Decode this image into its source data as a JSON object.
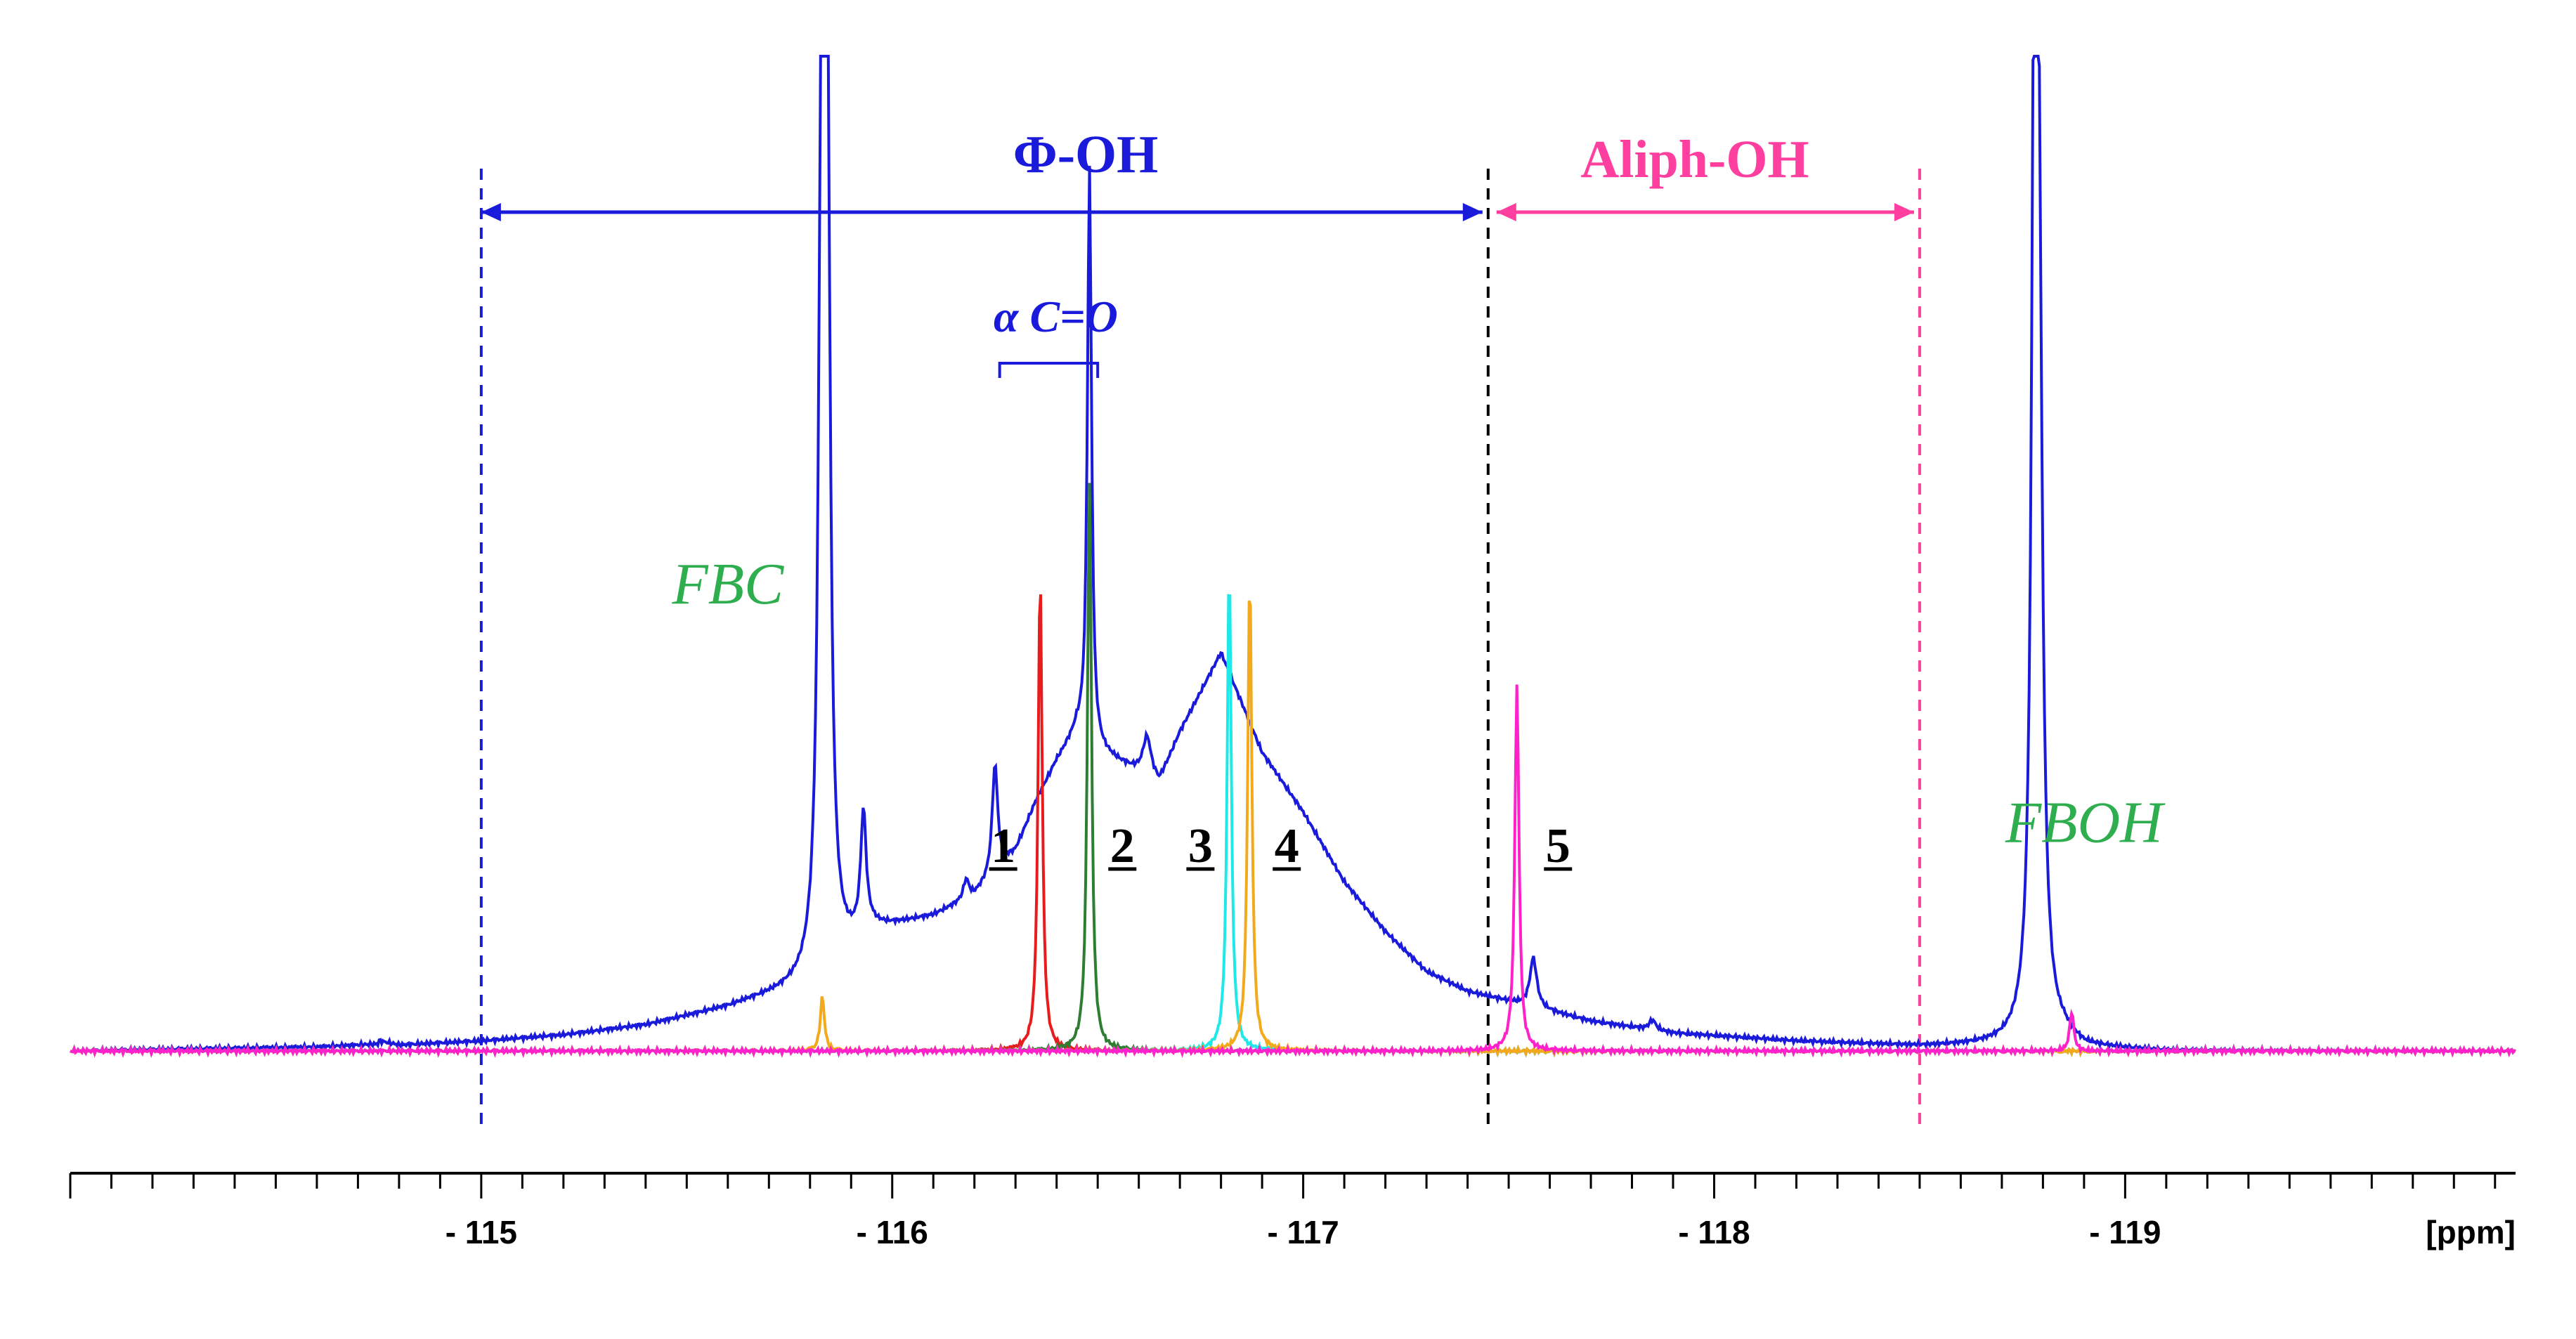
{
  "chart_data": {
    "type": "line",
    "title": "",
    "xlabel": "[ppm]",
    "ylabel": "",
    "x_axis_reversed": true,
    "xlim": [
      -114.0,
      -119.95
    ],
    "ylim": [
      -0.05,
      1.0
    ],
    "grid": false,
    "x_ticks": [
      {
        "value": -115,
        "label": "- 115"
      },
      {
        "value": -116,
        "label": "- 116"
      },
      {
        "value": -117,
        "label": "- 117"
      },
      {
        "value": -118,
        "label": "- 118"
      },
      {
        "value": -119,
        "label": "- 119"
      }
    ],
    "regions": [
      {
        "name": "phenolic",
        "label": "Φ-OH",
        "from": -115.0,
        "to": -117.45,
        "color": "#1a1adb"
      },
      {
        "name": "aliphatic",
        "label": "Aliph-OH",
        "from": -117.45,
        "to": -118.5,
        "color": "#ff3fa0"
      }
    ],
    "alpha_co": {
      "label": "α C=O",
      "from": -116.27,
      "to": -116.5,
      "color": "#1a1adb"
    },
    "boundaries": [
      {
        "x": -115.0,
        "color": "#1a1adb"
      },
      {
        "x": -117.45,
        "color": "#000000"
      },
      {
        "x": -118.5,
        "color": "#ff3fa0"
      }
    ],
    "annotations": [
      {
        "id": "1",
        "x": -116.27,
        "y": 0.19,
        "color": "#000000",
        "underline": true
      },
      {
        "id": "2",
        "x": -116.56,
        "y": 0.19,
        "color": "#000000",
        "underline": true
      },
      {
        "id": "3",
        "x": -116.75,
        "y": 0.19,
        "color": "#000000",
        "underline": true
      },
      {
        "id": "4",
        "x": -116.96,
        "y": 0.19,
        "color": "#000000",
        "underline": true
      },
      {
        "id": "5",
        "x": -117.62,
        "y": 0.19,
        "color": "#000000",
        "underline": true
      },
      {
        "id": "FBC",
        "x": -115.6,
        "y": 0.45,
        "color": "#2fae4f",
        "italic": true
      },
      {
        "id": "FBOH",
        "x": -118.9,
        "y": 0.21,
        "color": "#2fae4f",
        "italic": true
      }
    ],
    "series": [
      {
        "name": "blue",
        "color": "#1a1adb",
        "broad": [
          [
            -114.0,
            0.0
          ],
          [
            -114.6,
            0.004
          ],
          [
            -114.75,
            0.007
          ],
          [
            -114.73,
            0.012
          ],
          [
            -114.8,
            0.006
          ],
          [
            -115.0,
            0.01
          ],
          [
            -115.2,
            0.016
          ],
          [
            -115.4,
            0.026
          ],
          [
            -115.6,
            0.044
          ],
          [
            -115.65,
            0.05
          ],
          [
            -115.8,
            0.065
          ],
          [
            -115.85,
            0.08
          ],
          [
            -115.9,
            0.1
          ],
          [
            -115.95,
            0.12
          ],
          [
            -116.0,
            0.125
          ],
          [
            -116.1,
            0.135
          ],
          [
            -116.2,
            0.155
          ],
          [
            -116.3,
            0.2
          ],
          [
            -116.35,
            0.25
          ],
          [
            -116.4,
            0.29
          ],
          [
            -116.45,
            0.32
          ],
          [
            -116.5,
            0.3
          ],
          [
            -116.55,
            0.29
          ],
          [
            -116.6,
            0.28
          ],
          [
            -116.65,
            0.27
          ],
          [
            -116.7,
            0.32
          ],
          [
            -116.75,
            0.36
          ],
          [
            -116.8,
            0.4
          ],
          [
            -116.85,
            0.35
          ],
          [
            -116.9,
            0.3
          ],
          [
            -117.0,
            0.24
          ],
          [
            -117.1,
            0.17
          ],
          [
            -117.2,
            0.12
          ],
          [
            -117.3,
            0.08
          ],
          [
            -117.4,
            0.06
          ],
          [
            -117.45,
            0.055
          ],
          [
            -117.55,
            0.045
          ],
          [
            -117.7,
            0.03
          ],
          [
            -117.9,
            0.018
          ],
          [
            -118.2,
            0.01
          ],
          [
            -118.5,
            0.005
          ],
          [
            -118.7,
            0.006
          ],
          [
            -118.85,
            0.012
          ],
          [
            -118.9,
            0.003
          ],
          [
            -119.1,
            0.0
          ],
          [
            -119.95,
            0.0
          ]
        ],
        "peaks": [
          {
            "x": -115.84,
            "h": 1.0,
            "w": 0.008
          },
          {
            "x": -115.83,
            "h": 1.0,
            "w": 0.008
          },
          {
            "x": -115.93,
            "h": 0.12,
            "w": 0.008
          },
          {
            "x": -116.18,
            "h": 0.02,
            "w": 0.008
          },
          {
            "x": -116.25,
            "h": 0.11,
            "w": 0.008
          },
          {
            "x": -116.48,
            "h": 0.58,
            "w": 0.006
          },
          {
            "x": -116.62,
            "h": 0.04,
            "w": 0.012
          },
          {
            "x": -117.56,
            "h": 0.05,
            "w": 0.01
          },
          {
            "x": -117.85,
            "h": 0.01,
            "w": 0.01
          },
          {
            "x": -118.78,
            "h": 1.0,
            "w": 0.008
          },
          {
            "x": -118.79,
            "h": 0.66,
            "w": 0.01
          }
        ]
      },
      {
        "name": "red",
        "color": "#e81c1c",
        "peaks": [
          {
            "x": -116.36,
            "h": 0.48,
            "w": 0.006
          }
        ]
      },
      {
        "name": "green",
        "color": "#2e7d32",
        "peaks": [
          {
            "x": -116.48,
            "h": 0.57,
            "w": 0.006
          }
        ]
      },
      {
        "name": "cyan",
        "color": "#1ee8e8",
        "peaks": [
          {
            "x": -116.82,
            "h": 0.49,
            "w": 0.006
          }
        ]
      },
      {
        "name": "orange",
        "color": "#f3a91c",
        "peaks": [
          {
            "x": -116.87,
            "h": 0.48,
            "w": 0.006
          },
          {
            "x": -115.83,
            "h": 0.055,
            "w": 0.006
          }
        ]
      },
      {
        "name": "magenta",
        "color": "#ff22cc",
        "peaks": [
          {
            "x": -117.52,
            "h": 0.37,
            "w": 0.006
          },
          {
            "x": -118.87,
            "h": 0.04,
            "w": 0.006
          }
        ]
      }
    ]
  }
}
